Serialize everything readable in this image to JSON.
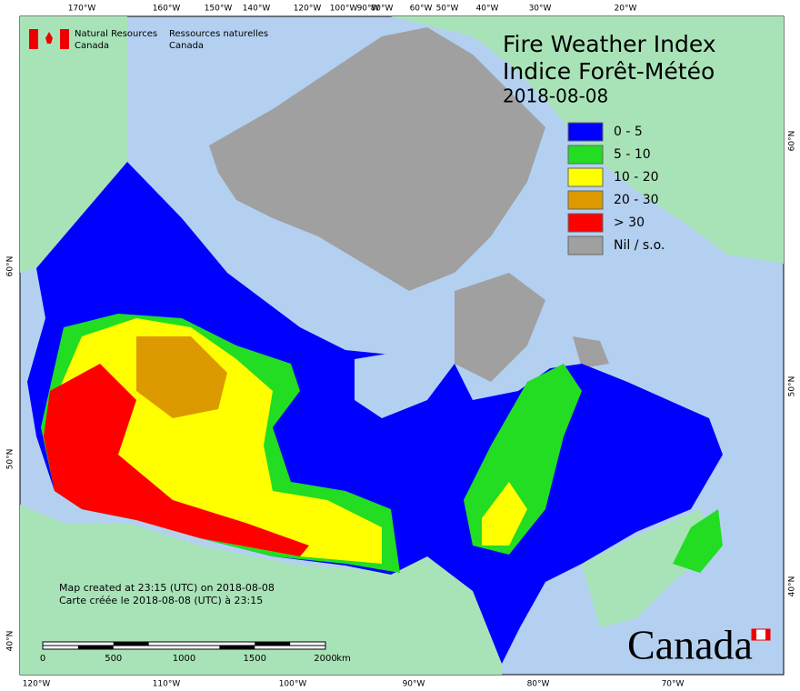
{
  "header": {
    "agency_en": [
      "Natural Resources",
      "Canada"
    ],
    "agency_fr": [
      "Ressources naturelles",
      "Canada"
    ]
  },
  "title": {
    "line1": "Fire Weather Index",
    "line2": "Indice Forêt-Météo",
    "date": "2018-08-08"
  },
  "legend": [
    {
      "label": "0 - 5",
      "color": "#0000ff"
    },
    {
      "label": "5 - 10",
      "color": "#22dd22"
    },
    {
      "label": "10 - 20",
      "color": "#ffff00"
    },
    {
      "label": "20 - 30",
      "color": "#dd9900"
    },
    {
      "label": "> 30",
      "color": "#ff0000"
    },
    {
      "label": "Nil / s.o.",
      "color": "#a0a0a0"
    }
  ],
  "axes": {
    "top": [
      "170°W",
      "160°W",
      "150°W",
      "140°W",
      "120°W",
      "100°W",
      "90°W",
      "80°W",
      "60°W",
      "50°W",
      "40°W",
      "30°W",
      "20°W"
    ],
    "bottom": [
      "120°W",
      "110°W",
      "100°W",
      "90°W",
      "80°W",
      "70°W"
    ],
    "left": [
      "60°N",
      "50°N",
      "40°N"
    ],
    "right": [
      "60°N",
      "50°N",
      "40°N"
    ]
  },
  "notes": [
    "Map created at 23:15 (UTC) on 2018-08-08",
    "Carte créée le 2018-08-08 (UTC) à 23:15"
  ],
  "scale": {
    "labels": [
      "0",
      "500",
      "1000",
      "1500",
      "2000"
    ],
    "unit": "km"
  },
  "wordmark": "Canada"
}
